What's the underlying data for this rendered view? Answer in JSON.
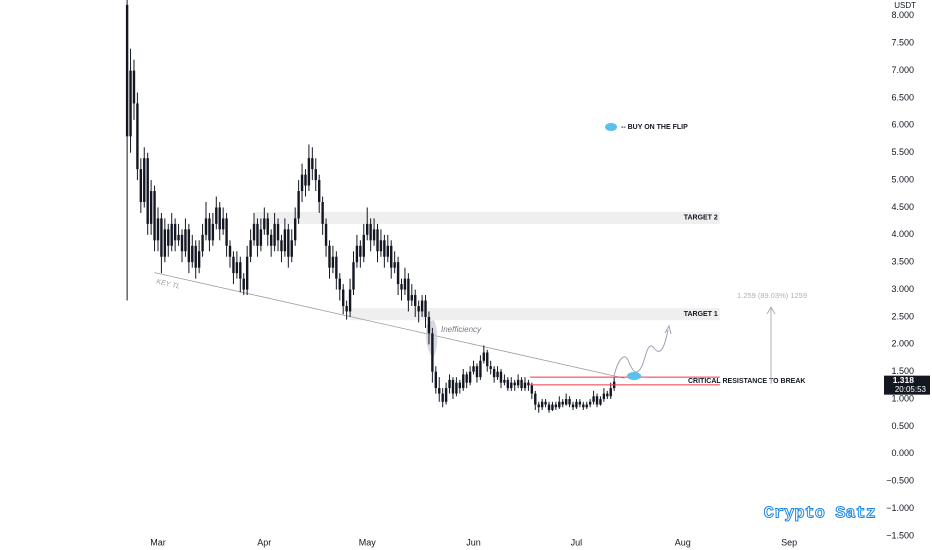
{
  "chart_data": {
    "type": "candlestick",
    "currency": "USDT",
    "color": "#131722",
    "candles": [
      [
        8.2,
        8.3,
        2.8,
        5.8
      ],
      [
        5.8,
        7.4,
        5.5,
        7.0
      ],
      [
        7.0,
        7.2,
        6.1,
        6.4
      ],
      [
        6.4,
        6.6,
        5.0,
        5.2
      ],
      [
        5.2,
        5.4,
        4.4,
        4.6
      ],
      [
        4.6,
        5.6,
        4.5,
        5.4
      ],
      [
        5.4,
        5.5,
        4.0,
        4.2
      ],
      [
        4.2,
        5.0,
        4.0,
        4.8
      ],
      [
        4.8,
        4.9,
        3.7,
        3.9
      ],
      [
        3.9,
        4.5,
        3.7,
        4.3
      ],
      [
        4.3,
        4.4,
        3.3,
        3.6
      ],
      [
        3.6,
        4.3,
        3.5,
        4.1
      ],
      [
        4.1,
        4.2,
        3.6,
        3.8
      ],
      [
        3.8,
        4.4,
        3.7,
        4.2
      ],
      [
        4.2,
        4.3,
        3.7,
        3.9
      ],
      [
        3.9,
        4.2,
        3.8,
        4.0
      ],
      [
        4.0,
        4.1,
        3.5,
        3.7
      ],
      [
        3.7,
        4.3,
        3.6,
        4.1
      ],
      [
        4.1,
        4.2,
        3.3,
        3.5
      ],
      [
        3.5,
        4.0,
        3.4,
        3.8
      ],
      [
        3.8,
        3.9,
        3.2,
        3.4
      ],
      [
        3.4,
        3.9,
        3.3,
        3.7
      ],
      [
        3.7,
        4.2,
        3.6,
        4.0
      ],
      [
        4.0,
        4.6,
        3.9,
        4.3
      ],
      [
        4.3,
        4.4,
        3.7,
        3.9
      ],
      [
        3.9,
        4.4,
        3.8,
        4.2
      ],
      [
        4.2,
        4.7,
        4.1,
        4.5
      ],
      [
        4.5,
        4.6,
        3.9,
        4.1
      ],
      [
        4.1,
        4.5,
        4.0,
        4.3
      ],
      [
        4.3,
        4.4,
        3.6,
        3.8
      ],
      [
        3.8,
        3.9,
        3.4,
        3.6
      ],
      [
        3.6,
        3.7,
        3.1,
        3.3
      ],
      [
        3.3,
        3.7,
        3.2,
        3.5
      ],
      [
        3.5,
        3.6,
        2.95,
        3.2
      ],
      [
        3.2,
        3.3,
        2.9,
        3.0
      ],
      [
        3.0,
        3.8,
        2.9,
        3.6
      ],
      [
        3.6,
        4.1,
        3.5,
        3.9
      ],
      [
        3.9,
        4.4,
        3.8,
        4.2
      ],
      [
        4.2,
        4.3,
        3.6,
        3.8
      ],
      [
        3.8,
        4.3,
        3.7,
        4.1
      ],
      [
        4.1,
        4.5,
        4.0,
        4.3
      ],
      [
        4.3,
        4.4,
        3.8,
        4.0
      ],
      [
        4.0,
        4.1,
        3.6,
        3.8
      ],
      [
        3.8,
        4.4,
        3.7,
        4.2
      ],
      [
        4.2,
        4.3,
        3.7,
        3.9
      ],
      [
        3.9,
        4.0,
        3.5,
        3.7
      ],
      [
        3.7,
        4.3,
        3.6,
        4.1
      ],
      [
        4.1,
        4.2,
        3.4,
        3.6
      ],
      [
        3.6,
        4.1,
        3.5,
        3.9
      ],
      [
        3.9,
        4.5,
        3.8,
        4.3
      ],
      [
        4.3,
        5.0,
        4.2,
        4.8
      ],
      [
        4.8,
        5.3,
        4.6,
        5.1
      ],
      [
        5.1,
        5.2,
        4.7,
        4.9
      ],
      [
        4.9,
        5.65,
        4.8,
        5.4
      ],
      [
        5.4,
        5.6,
        5.0,
        5.2
      ],
      [
        5.2,
        5.4,
        4.8,
        5.0
      ],
      [
        5.0,
        5.1,
        4.4,
        4.6
      ],
      [
        4.6,
        4.7,
        4.0,
        4.2
      ],
      [
        4.2,
        4.3,
        3.6,
        3.8
      ],
      [
        3.8,
        3.9,
        3.2,
        3.4
      ],
      [
        3.4,
        3.8,
        3.3,
        3.6
      ],
      [
        3.6,
        3.7,
        3.0,
        3.2
      ],
      [
        3.2,
        3.3,
        2.8,
        3.0
      ],
      [
        3.0,
        3.1,
        2.55,
        2.7
      ],
      [
        2.7,
        2.8,
        2.45,
        2.6
      ],
      [
        2.6,
        3.2,
        2.5,
        3.0
      ],
      [
        3.0,
        3.7,
        2.9,
        3.5
      ],
      [
        3.5,
        4.0,
        3.4,
        3.8
      ],
      [
        3.8,
        3.9,
        3.4,
        3.6
      ],
      [
        3.6,
        4.2,
        3.5,
        4.0
      ],
      [
        4.0,
        4.5,
        3.9,
        4.2
      ],
      [
        4.2,
        4.3,
        3.7,
        3.9
      ],
      [
        3.9,
        4.3,
        3.8,
        4.1
      ],
      [
        4.1,
        4.2,
        3.5,
        3.7
      ],
      [
        3.7,
        4.1,
        3.6,
        3.9
      ],
      [
        3.9,
        4.0,
        3.4,
        3.6
      ],
      [
        3.6,
        4.0,
        3.5,
        3.8
      ],
      [
        3.8,
        3.9,
        3.2,
        3.4
      ],
      [
        3.4,
        3.7,
        3.3,
        3.5
      ],
      [
        3.5,
        3.6,
        2.9,
        3.1
      ],
      [
        3.1,
        3.2,
        2.8,
        3.0
      ],
      [
        3.0,
        3.4,
        2.9,
        3.2
      ],
      [
        3.2,
        3.3,
        2.6,
        2.8
      ],
      [
        2.8,
        3.1,
        2.7,
        2.9
      ],
      [
        2.9,
        3.0,
        2.5,
        2.7
      ],
      [
        2.7,
        2.8,
        2.4,
        2.6
      ],
      [
        2.6,
        2.9,
        2.5,
        2.8
      ],
      [
        2.8,
        2.9,
        2.3,
        2.5
      ],
      [
        2.5,
        2.6,
        2.0,
        2.2
      ],
      [
        2.2,
        2.3,
        1.3,
        1.5
      ],
      [
        1.5,
        1.6,
        1.1,
        1.2
      ],
      [
        1.2,
        1.4,
        0.95,
        1.1
      ],
      [
        1.1,
        1.2,
        0.85,
        0.95
      ],
      [
        0.95,
        1.3,
        0.9,
        1.2
      ],
      [
        1.2,
        1.45,
        1.1,
        1.35
      ],
      [
        1.35,
        1.4,
        1.0,
        1.1
      ],
      [
        1.1,
        1.4,
        1.05,
        1.3
      ],
      [
        1.3,
        1.35,
        1.1,
        1.2
      ],
      [
        1.2,
        1.55,
        1.15,
        1.45
      ],
      [
        1.45,
        1.5,
        1.2,
        1.3
      ],
      [
        1.3,
        1.6,
        1.25,
        1.5
      ],
      [
        1.5,
        1.7,
        1.45,
        1.6
      ],
      [
        1.6,
        1.65,
        1.3,
        1.4
      ],
      [
        1.4,
        1.8,
        1.35,
        1.7
      ],
      [
        1.7,
        1.98,
        1.65,
        1.85
      ],
      [
        1.85,
        1.9,
        1.5,
        1.6
      ],
      [
        1.6,
        1.7,
        1.45,
        1.55
      ],
      [
        1.55,
        1.6,
        1.3,
        1.4
      ],
      [
        1.4,
        1.6,
        1.35,
        1.5
      ],
      [
        1.5,
        1.55,
        1.2,
        1.3
      ],
      [
        1.3,
        1.45,
        1.25,
        1.35
      ],
      [
        1.35,
        1.4,
        1.15,
        1.2
      ],
      [
        1.2,
        1.4,
        1.15,
        1.3
      ],
      [
        1.3,
        1.35,
        1.15,
        1.25
      ],
      [
        1.25,
        1.45,
        1.2,
        1.35
      ],
      [
        1.35,
        1.4,
        1.15,
        1.2
      ],
      [
        1.2,
        1.4,
        1.15,
        1.3
      ],
      [
        1.3,
        1.35,
        1.15,
        1.25
      ],
      [
        1.25,
        1.3,
        1.0,
        1.1
      ],
      [
        1.1,
        1.15,
        0.8,
        0.9
      ],
      [
        0.9,
        0.95,
        0.75,
        0.85
      ],
      [
        0.85,
        1.0,
        0.8,
        0.95
      ],
      [
        0.95,
        1.0,
        0.85,
        0.9
      ],
      [
        0.9,
        0.95,
        0.75,
        0.8
      ],
      [
        0.8,
        0.95,
        0.78,
        0.9
      ],
      [
        0.9,
        0.95,
        0.8,
        0.85
      ],
      [
        0.85,
        1.05,
        0.82,
        0.95
      ],
      [
        0.95,
        1.0,
        0.85,
        0.9
      ],
      [
        0.9,
        1.1,
        0.88,
        1.0
      ],
      [
        1.0,
        1.05,
        0.85,
        0.9
      ],
      [
        0.9,
        0.95,
        0.8,
        0.85
      ],
      [
        0.85,
        1.0,
        0.82,
        0.95
      ],
      [
        0.95,
        1.0,
        0.85,
        0.9
      ],
      [
        0.9,
        0.95,
        0.8,
        0.85
      ],
      [
        0.85,
        0.95,
        0.82,
        0.9
      ],
      [
        0.9,
        1.0,
        0.85,
        0.95
      ],
      [
        0.95,
        1.15,
        0.9,
        1.05
      ],
      [
        1.05,
        1.1,
        0.85,
        0.9
      ],
      [
        0.9,
        1.05,
        0.88,
        1.0
      ],
      [
        1.0,
        1.2,
        0.95,
        1.1
      ],
      [
        1.1,
        1.15,
        1.0,
        1.05
      ],
      [
        1.05,
        1.3,
        1.0,
        1.2
      ],
      [
        1.2,
        1.4,
        1.15,
        1.318
      ]
    ],
    "xlim": [
      -37.06,
      219.5
    ],
    "xticks": [
      {
        "value": 9,
        "label": "Mar"
      },
      {
        "value": 40,
        "label": "Apr"
      },
      {
        "value": 70,
        "label": "May"
      },
      {
        "value": 101,
        "label": "Jun"
      },
      {
        "value": 131,
        "label": "Jul"
      },
      {
        "value": 162,
        "label": "Aug"
      },
      {
        "value": 193,
        "label": "Sep"
      }
    ],
    "ylim": [
      -1.52,
      8.29
    ],
    "yticks": [
      {
        "value": 8,
        "label": "8.000"
      },
      {
        "value": 7.5,
        "label": "7.500"
      },
      {
        "value": 7,
        "label": "7.000"
      },
      {
        "value": 6.5,
        "label": "6.500"
      },
      {
        "value": 6,
        "label": "6.000"
      },
      {
        "value": 5.5,
        "label": "5.500"
      },
      {
        "value": 5,
        "label": "5.000"
      },
      {
        "value": 4.5,
        "label": "4.500"
      },
      {
        "value": 4,
        "label": "4.000"
      },
      {
        "value": 3.5,
        "label": "3.500"
      },
      {
        "value": 3,
        "label": "3.000"
      },
      {
        "value": 2.5,
        "label": "2.500"
      },
      {
        "value": 2,
        "label": "2.000"
      },
      {
        "value": 1.5,
        "label": "1.500"
      },
      {
        "value": 1,
        "label": "1.000"
      },
      {
        "value": 0.5,
        "label": "0.500"
      },
      {
        "value": 0,
        "label": "0.000"
      },
      {
        "value": -0.5,
        "label": "−0.500"
      },
      {
        "value": -1,
        "label": "−1.000"
      },
      {
        "value": -1.5,
        "label": "−1.500"
      }
    ],
    "grid": false,
    "countdown": "20:05:53",
    "trendline": {
      "label": "KEY TL",
      "color": "#9e9e9e",
      "points": [
        [
          8,
          3.31
        ],
        [
          145,
          1.38
        ]
      ]
    },
    "zones": [
      {
        "label": "TARGET 2",
        "low": 4.2,
        "high": 4.42,
        "start": 37.3,
        "end": 172.8,
        "color": "#efefef"
      },
      {
        "label": "TARGET 1",
        "low": 2.44,
        "high": 2.66,
        "start": 65,
        "end": 172.8,
        "color": "#efefef"
      }
    ],
    "resistance": {
      "label": "CRITICAL RESISTANCE TO BREAK",
      "levels": [
        1.4,
        1.26
      ],
      "start": 117.5,
      "end": 172.8,
      "color": "#f23645"
    },
    "buy_label": "-- BUY ON THE FLIP",
    "inefficiency": "Inefficiency",
    "measure": "1.259 (89.03%) 1259",
    "watermark": "Crypto Satz"
  }
}
